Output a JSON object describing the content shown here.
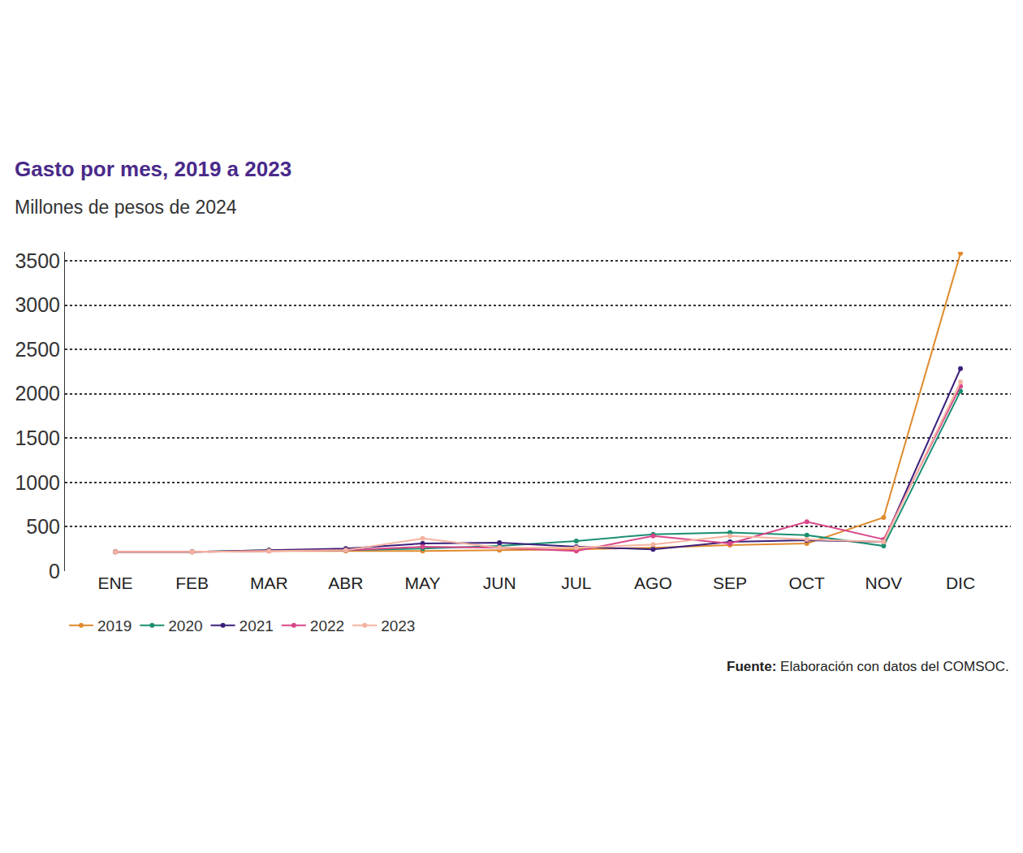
{
  "chart_data": {
    "type": "line",
    "title": "Gasto por mes, 2019 a 2023",
    "subtitle": "Millones de pesos de 2024",
    "categories": [
      "ENE",
      "FEB",
      "MAR",
      "ABR",
      "MAY",
      "JUN",
      "JUL",
      "AGO",
      "SEP",
      "OCT",
      "NOV",
      "DIC"
    ],
    "series": [
      {
        "name": "2019",
        "color": "#e08a2e",
        "values": [
          217,
          217,
          226,
          226,
          226,
          236,
          245,
          264,
          292,
          311,
          604,
          3585
        ]
      },
      {
        "name": "2020",
        "color": "#1a8f72",
        "values": [
          217,
          217,
          236,
          236,
          255,
          283,
          340,
          415,
          434,
          406,
          283,
          2028
        ]
      },
      {
        "name": "2021",
        "color": "#3b1f7a",
        "values": [
          217,
          217,
          236,
          255,
          311,
          320,
          274,
          245,
          330,
          349,
          330,
          2283
        ]
      },
      {
        "name": "2022",
        "color": "#d9478a",
        "values": [
          217,
          217,
          226,
          236,
          274,
          264,
          226,
          396,
          311,
          557,
          358,
          2085
        ]
      },
      {
        "name": "2023",
        "color": "#f4b3a0",
        "values": [
          217,
          217,
          226,
          236,
          368,
          264,
          264,
          300,
          396,
          358,
          330,
          2132
        ]
      }
    ],
    "ylim": [
      0,
      3600
    ],
    "yticks": [
      0,
      500,
      1000,
      1500,
      2000,
      2500,
      3000,
      3500
    ],
    "grid": true,
    "legend": "bottom-left",
    "marker": "circle",
    "source": {
      "label": "Fuente:",
      "text": "Elaboración con datos del COMSOC."
    }
  }
}
